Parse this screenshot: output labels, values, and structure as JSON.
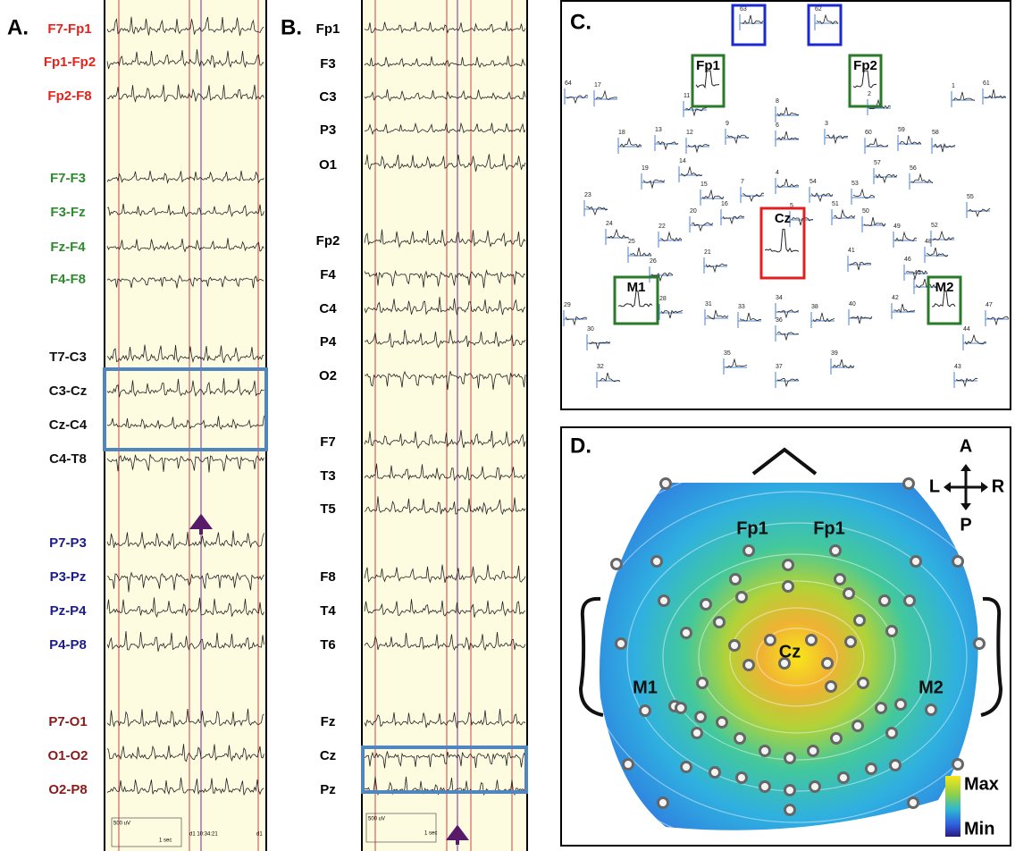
{
  "panel_a": {
    "label": "A.",
    "channels": [
      {
        "name": "F7-Fp1",
        "color": "#e3231c"
      },
      {
        "name": "Fp1-Fp2",
        "color": "#e3231c"
      },
      {
        "name": "Fp2-F8",
        "color": "#e3231c"
      },
      {
        "name": "F7-F3",
        "color": "#2e8b2e"
      },
      {
        "name": "F3-Fz",
        "color": "#2e8b2e"
      },
      {
        "name": "Fz-F4",
        "color": "#2e8b2e"
      },
      {
        "name": "F4-F8",
        "color": "#2e8b2e"
      },
      {
        "name": "T7-C3",
        "color": "#111111"
      },
      {
        "name": "C3-Cz",
        "color": "#111111"
      },
      {
        "name": "Cz-C4",
        "color": "#111111"
      },
      {
        "name": "C4-T8",
        "color": "#111111"
      },
      {
        "name": "P7-P3",
        "color": "#1c1c8c"
      },
      {
        "name": "P3-Pz",
        "color": "#1c1c8c"
      },
      {
        "name": "Pz-P4",
        "color": "#1c1c8c"
      },
      {
        "name": "P4-P8",
        "color": "#1c1c8c"
      },
      {
        "name": "P7-O1",
        "color": "#8b1a1a"
      },
      {
        "name": "O1-O2",
        "color": "#8b1a1a"
      },
      {
        "name": "O2-P8",
        "color": "#8b1a1a"
      }
    ],
    "scale": {
      "amplitude": "500 uV",
      "time": "1 sec",
      "timestamp": "d1 10:34:21",
      "end": "d1"
    }
  },
  "panel_b": {
    "label": "B.",
    "channels": [
      "Fp1",
      "F3",
      "C3",
      "P3",
      "O1",
      "Fp2",
      "F4",
      "C4",
      "P4",
      "O2",
      "F7",
      "T3",
      "T5",
      "F8",
      "T4",
      "T6",
      "Fz",
      "Cz",
      "Pz"
    ],
    "scale": {
      "amplitude": "500 uV",
      "time": "1 sec"
    }
  },
  "panel_c": {
    "label": "C.",
    "highlighted": [
      "Fp1",
      "Fp2",
      "Cz",
      "M1",
      "M2"
    ],
    "electrodes": [
      "63",
      "62",
      "64",
      "17",
      "11",
      "8",
      "2",
      "1",
      "61",
      "6",
      "18",
      "13",
      "12",
      "9",
      "3",
      "60",
      "59",
      "58",
      "14",
      "57",
      "19",
      "56",
      "15",
      "7",
      "4",
      "54",
      "53",
      "23",
      "55",
      "20",
      "16",
      "5",
      "51",
      "50",
      "22",
      "24",
      "49",
      "52",
      "25",
      "48",
      "21",
      "41",
      "26",
      "46",
      "45",
      "28",
      "34",
      "29",
      "31",
      "33",
      "36",
      "38",
      "40",
      "42",
      "47",
      "30",
      "44",
      "35",
      "39",
      "32",
      "37",
      "43"
    ]
  },
  "panel_d": {
    "label": "D.",
    "electrodes": [
      "Fp1",
      "Fp1",
      "Cz",
      "M1",
      "M2"
    ],
    "orientation": [
      "A",
      "L",
      "R",
      "P"
    ],
    "colorbar": {
      "max": "Max",
      "min": "Min"
    }
  }
}
